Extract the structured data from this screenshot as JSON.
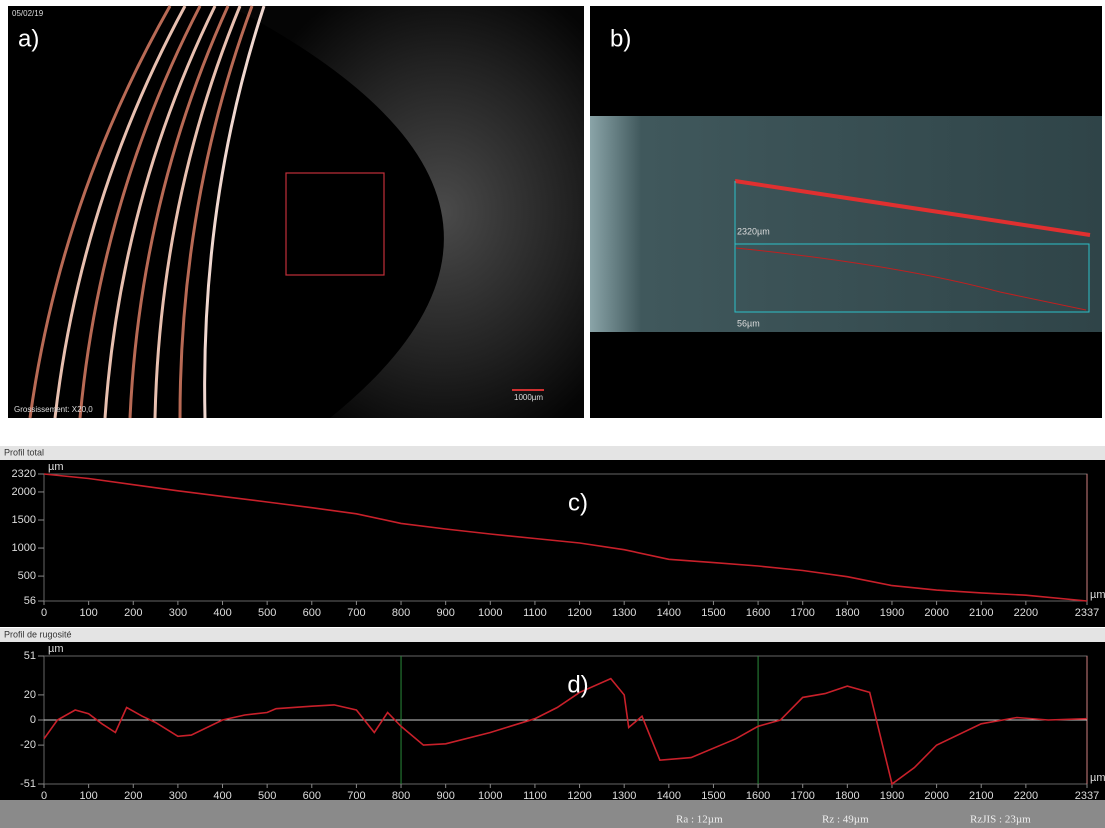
{
  "panels": {
    "a": {
      "label": "a)",
      "date": "05/02/19",
      "magnification": "Grossissement: X20,0",
      "scale_bar": "1000µm"
    },
    "b": {
      "label": "b)",
      "length": "2320µm",
      "depth": "56µm"
    }
  },
  "chart_data": [
    {
      "type": "line",
      "title": "Profil total",
      "panel_label": "c)",
      "y_unit": "µm",
      "x_unit": "µm",
      "color": "#c8202a",
      "x": [
        0,
        100,
        200,
        300,
        400,
        500,
        600,
        700,
        800,
        900,
        1000,
        1100,
        1200,
        1300,
        1400,
        1500,
        1600,
        1700,
        1800,
        1900,
        2000,
        2100,
        2200,
        2337
      ],
      "values": [
        2320,
        2240,
        2130,
        2020,
        1920,
        1820,
        1720,
        1610,
        1440,
        1340,
        1250,
        1170,
        1090,
        970,
        800,
        740,
        680,
        600,
        490,
        330,
        250,
        200,
        160,
        56
      ],
      "xlim": [
        0,
        2337
      ],
      "ylim": [
        56,
        2320
      ],
      "xticks": [
        0,
        100,
        200,
        300,
        400,
        500,
        600,
        700,
        800,
        900,
        1000,
        1100,
        1200,
        1300,
        1400,
        1500,
        1600,
        1700,
        1800,
        1900,
        2000,
        2100,
        2200,
        2337
      ],
      "yticks": [
        56,
        500,
        1000,
        1500,
        2000,
        2320
      ]
    },
    {
      "type": "line",
      "title": "Profil de rugosité",
      "panel_label": "d)",
      "y_unit": "µm",
      "x_unit": "µm",
      "color": "#c8202a",
      "cursors": [
        800,
        1600
      ],
      "zero_line": true,
      "x": [
        0,
        30,
        70,
        100,
        130,
        160,
        185,
        220,
        250,
        300,
        330,
        400,
        450,
        500,
        520,
        600,
        650,
        700,
        740,
        770,
        800,
        850,
        900,
        1000,
        1100,
        1150,
        1200,
        1270,
        1300,
        1310,
        1340,
        1380,
        1450,
        1550,
        1600,
        1650,
        1700,
        1750,
        1800,
        1850,
        1900,
        1950,
        2000,
        2100,
        2180,
        2250,
        2337
      ],
      "values": [
        -15,
        0,
        8,
        5,
        -3,
        -10,
        10,
        3,
        -2,
        -13,
        -12,
        0,
        4,
        6,
        9,
        11,
        12,
        8,
        -10,
        6,
        -5,
        -20,
        -19,
        -10,
        1,
        10,
        22,
        33,
        20,
        -6,
        3,
        -32,
        -30,
        -15,
        -5,
        0,
        18,
        21,
        27,
        22,
        -51,
        -38,
        -20,
        -3,
        2,
        0,
        1
      ],
      "xlim": [
        0,
        2337
      ],
      "ylim": [
        -51,
        51
      ],
      "xticks": [
        0,
        100,
        200,
        300,
        400,
        500,
        600,
        700,
        800,
        900,
        1000,
        1100,
        1200,
        1300,
        1400,
        1500,
        1600,
        1700,
        1800,
        1900,
        2000,
        2100,
        2200,
        2337
      ],
      "yticks": [
        -51,
        -20,
        0,
        20,
        51
      ]
    }
  ],
  "footer": {
    "ra": "Ra : 12µm",
    "rz": "Rz : 49µm",
    "rzjis": "RzJIS : 23µm"
  }
}
